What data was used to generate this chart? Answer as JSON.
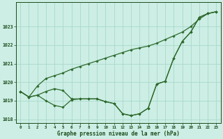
{
  "hours": [
    0,
    1,
    2,
    3,
    4,
    5,
    6,
    7,
    8,
    9,
    10,
    11,
    12,
    13,
    14,
    15,
    16,
    17,
    18,
    19,
    20,
    21,
    22,
    23
  ],
  "line1": [
    1019.5,
    1019.2,
    1019.3,
    1019.0,
    1018.75,
    1018.65,
    1019.05,
    1019.1,
    1019.1,
    1019.1,
    1018.95,
    1018.85,
    1018.3,
    1018.2,
    1018.3,
    1018.6,
    1019.9,
    1020.05,
    1021.3,
    1022.2,
    1022.7,
    1023.5,
    1023.7,
    1023.8
  ],
  "line2": [
    1019.5,
    1019.2,
    1019.3,
    1019.5,
    1019.65,
    1019.55,
    1019.1,
    1019.1,
    1019.1,
    1019.1,
    1018.95,
    1018.85,
    1018.3,
    1018.2,
    1018.3,
    1018.6,
    1019.9,
    1020.05,
    1021.3,
    1022.2,
    1022.7,
    1023.5,
    1023.7,
    1023.8
  ],
  "line3": [
    1019.5,
    1019.2,
    1019.8,
    1020.2,
    1020.35,
    1020.5,
    1020.7,
    1020.85,
    1021.0,
    1021.15,
    1021.3,
    1021.45,
    1021.6,
    1021.75,
    1021.85,
    1021.95,
    1022.1,
    1022.3,
    1022.5,
    1022.7,
    1023.0,
    1023.4,
    1023.7,
    1023.8
  ],
  "line_color": "#2d6a2d",
  "bg_color": "#cceee4",
  "grid_color": "#aad8cc",
  "ylabel_values": [
    1018,
    1019,
    1020,
    1021,
    1022,
    1023
  ],
  "ylim": [
    1017.8,
    1024.3
  ],
  "xlabel": "Graphe pression niveau de la mer (hPa)",
  "marker": "D",
  "marker_size": 1.8,
  "linewidth": 0.9,
  "font_color": "#1a4a1a",
  "tick_fontsize": 4.2,
  "label_fontsize": 5.5
}
